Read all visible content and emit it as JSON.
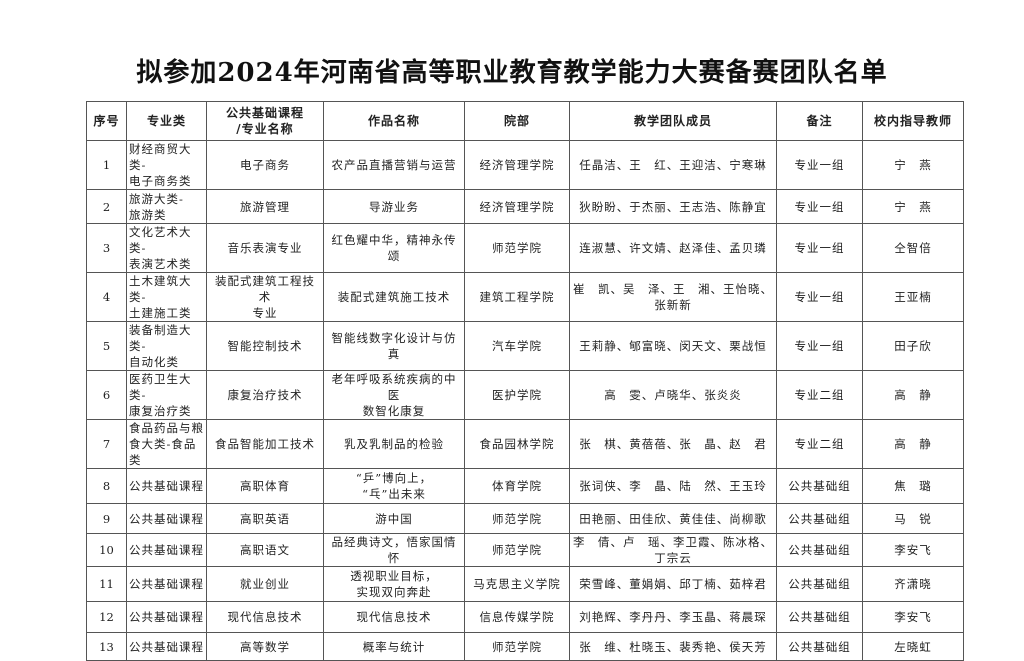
{
  "title": "拟参加2024年河南省高等职业教育教学能力大赛备赛团队名单",
  "table": {
    "headers": [
      "序号",
      "专业类",
      "公共基础课程\n/专业名称",
      "作品名称",
      "院部",
      "教学团队成员",
      "备注",
      "校内指导教师"
    ],
    "rows": [
      [
        "1",
        "财经商贸大类-\n电子商务类",
        "电子商务",
        "农产品直播营销与运营",
        "经济管理学院",
        "任晶洁、王　红、王迎洁、宁寒琳",
        "专业一组",
        "宁　燕"
      ],
      [
        "2",
        "旅游大类-\n旅游类",
        "旅游管理",
        "导游业务",
        "经济管理学院",
        "狄盼盼、于杰丽、王志浩、陈静宜",
        "专业一组",
        "宁　燕"
      ],
      [
        "3",
        "文化艺术大类-\n表演艺术类",
        "音乐表演专业",
        "红色耀中华，精神永传颂",
        "师范学院",
        "连淑慧、许文婧、赵泽佳、孟贝璘",
        "专业一组",
        "仝智倍"
      ],
      [
        "4",
        "土木建筑大类-\n土建施工类",
        "装配式建筑工程技术\n专业",
        "装配式建筑施工技术",
        "建筑工程学院",
        "崔　凯、吴　泽、王　湘、王怡晓、\n张新新",
        "专业一组",
        "王亚楠"
      ],
      [
        "5",
        "装备制造大类-\n自动化类",
        "智能控制技术",
        "智能线数字化设计与仿真",
        "汽车学院",
        "王莉静、郇富晓、闵天文、栗战恒",
        "专业一组",
        "田子欣"
      ],
      [
        "6",
        "医药卫生大类-\n康复治疗类",
        "康复治疗技术",
        "老年呼吸系统疾病的中医\n数智化康复",
        "医护学院",
        "高　雯、卢晓华、张炎炎",
        "专业二组",
        "高　静"
      ],
      [
        "7",
        "食品药品与粮\n食大类-食品类",
        "食品智能加工技术",
        "乳及乳制品的检验",
        "食品园林学院",
        "张　棋、黄蓓蓓、张　晶、赵　君",
        "专业二组",
        "高　静"
      ],
      [
        "8",
        "公共基础课程",
        "高职体育",
        "“乒”博向上，\n“乓”出未来",
        "体育学院",
        "张词侠、李　晶、陆　然、王玉玲",
        "公共基础组",
        "焦　璐"
      ],
      [
        "9",
        "公共基础课程",
        "高职英语",
        "游中国",
        "师范学院",
        "田艳丽、田佳欣、黄佳佳、尚柳歌",
        "公共基础组",
        "马　锐"
      ],
      [
        "10",
        "公共基础课程",
        "高职语文",
        "品经典诗文，悟家国情怀",
        "师范学院",
        "李　倩、卢　瑶、李卫霞、陈冰格、\n丁宗云",
        "公共基础组",
        "李安飞"
      ],
      [
        "11",
        "公共基础课程",
        "就业创业",
        "透视职业目标，\n实现双向奔赴",
        "马克思主义学院",
        "荣雪峰、董娟娟、邱丁楠、茹梓君",
        "公共基础组",
        "齐潇晓"
      ],
      [
        "12",
        "公共基础课程",
        "现代信息技术",
        "现代信息技术",
        "信息传媒学院",
        "刘艳辉、李丹丹、李玉晶、蒋晨琛",
        "公共基础组",
        "李安飞"
      ],
      [
        "13",
        "公共基础课程",
        "高等数学",
        "概率与统计",
        "师范学院",
        "张　维、杜晓玉、裴秀艳、侯天芳",
        "公共基础组",
        "左晓虹"
      ]
    ]
  }
}
